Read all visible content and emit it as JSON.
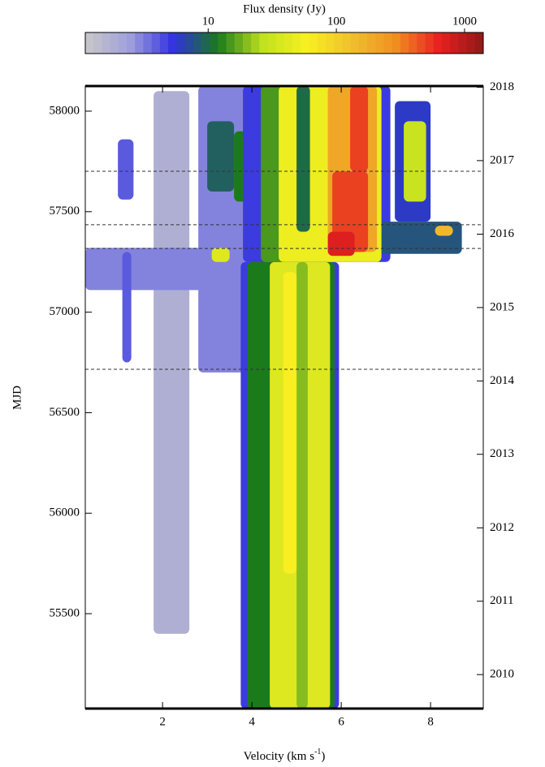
{
  "chart_data": {
    "type": "heatmap",
    "title": "Flux density (Jy)",
    "xlabel": "Velocity (km s",
    "xlabel_sup": "-1",
    "xlabel_end": ")",
    "ylabel": "MJD",
    "xlim": [
      0.27,
      9.18
    ],
    "xticks": [
      2,
      4,
      6,
      8
    ],
    "ylim": [
      55028,
      58125
    ],
    "yticks": [
      55500,
      56000,
      56500,
      57000,
      57500,
      58000
    ],
    "y2ticks": [
      {
        "value": 55197,
        "label": "2010"
      },
      {
        "value": 55562,
        "label": "2011"
      },
      {
        "value": 55927,
        "label": "2012"
      },
      {
        "value": 56293,
        "label": "2013"
      },
      {
        "value": 56658,
        "label": "2014"
      },
      {
        "value": 57023,
        "label": "2015"
      },
      {
        "value": 57388,
        "label": "2016"
      },
      {
        "value": 57754,
        "label": "2017"
      },
      {
        "value": 58119,
        "label": "2018"
      }
    ],
    "clim": [
      1.1,
      1400
    ],
    "cticks": [
      10,
      100,
      1000
    ],
    "log_color": true,
    "colormap": [
      "#c8c8c8",
      "#a0a0dc",
      "#3030e0",
      "#1a7a1a",
      "#c0e020",
      "#f8f020",
      "#f0c030",
      "#f09020",
      "#e82020",
      "#901818"
    ],
    "hlines": [
      57701,
      57435,
      57317,
      56716
    ],
    "features": [
      [
        1.8,
        2.6,
        55400,
        58100,
        1.8
      ],
      [
        2.8,
        3.9,
        56700,
        58125,
        3
      ],
      [
        0.27,
        4.3,
        57110,
        57320,
        3
      ],
      [
        1.1,
        1.3,
        56750,
        57300,
        4
      ],
      [
        1.0,
        1.35,
        57560,
        57860,
        4
      ],
      [
        3.0,
        3.6,
        57600,
        57950,
        9
      ],
      [
        3.6,
        4.0,
        57550,
        57900,
        12
      ],
      [
        3.1,
        3.5,
        57250,
        57320,
        40
      ],
      [
        3.75,
        5.95,
        55028,
        57250,
        5
      ],
      [
        3.9,
        5.85,
        55028,
        57250,
        12
      ],
      [
        4.4,
        5.75,
        55028,
        57250,
        40
      ],
      [
        5.0,
        5.25,
        55028,
        57250,
        20
      ],
      [
        4.7,
        5.0,
        55700,
        57200,
        60
      ],
      [
        3.8,
        7.1,
        57250,
        58125,
        5
      ],
      [
        6.5,
        8.7,
        57290,
        57450,
        8
      ],
      [
        7.2,
        8.0,
        57450,
        58050,
        6
      ],
      [
        7.4,
        7.9,
        57550,
        57950,
        30
      ],
      [
        8.1,
        8.5,
        57380,
        57430,
        150
      ],
      [
        4.2,
        6.9,
        57250,
        58125,
        15
      ],
      [
        4.6,
        6.9,
        57250,
        58125,
        50
      ],
      [
        5.0,
        5.3,
        57400,
        58125,
        10
      ],
      [
        5.7,
        6.8,
        57300,
        58125,
        200
      ],
      [
        5.8,
        6.6,
        57300,
        57700,
        500
      ],
      [
        6.2,
        6.6,
        57700,
        58125,
        500
      ],
      [
        5.7,
        6.3,
        57280,
        57400,
        700
      ]
    ]
  }
}
